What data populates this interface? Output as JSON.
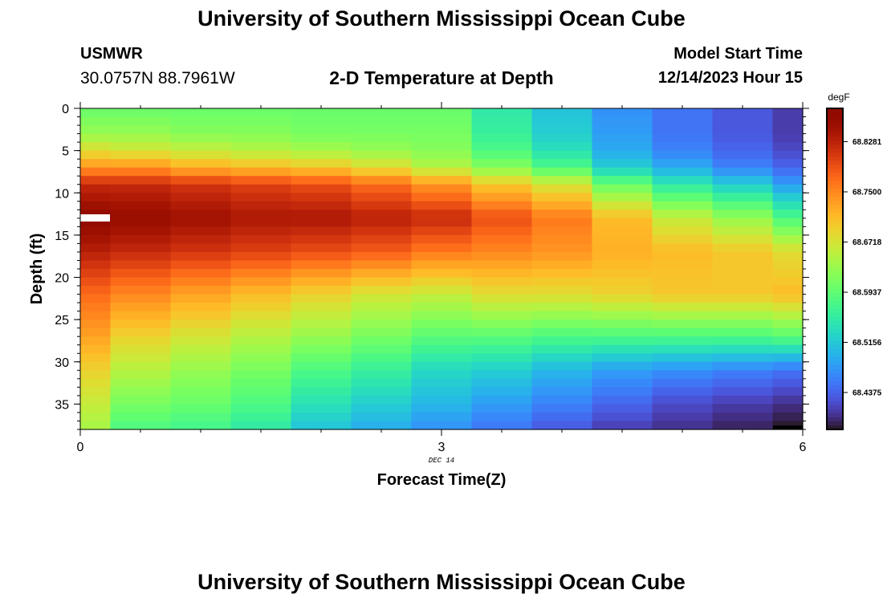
{
  "header": {
    "title": "University of Southern Mississippi Ocean Cube",
    "station": "USMWR",
    "coordinates": "30.0757N  88.7961W",
    "subtitle": "2-D Temperature at Depth",
    "model_start_label": "Model Start Time",
    "model_start_value": "12/14/2023 Hour 15"
  },
  "footer": {
    "title": "University of Southern Mississippi Ocean Cube"
  },
  "chart_data": {
    "type": "heatmap",
    "xlabel": "Forecast Time(Z)",
    "ylabel": "Depth (ft)",
    "x_ticks": [
      "0",
      "3",
      "6"
    ],
    "x_tick_values": [
      0,
      3,
      6
    ],
    "x_sublabel": "DEC 14",
    "y_ticks": [
      "0",
      "5",
      "10",
      "15",
      "20",
      "25",
      "30",
      "35"
    ],
    "y_tick_values": [
      0,
      5,
      10,
      15,
      20,
      25,
      30,
      35
    ],
    "xlim": [
      0,
      6
    ],
    "ylim": [
      0,
      38
    ],
    "y_inverted": true,
    "colorbar": {
      "unit": "degF",
      "labels": [
        "68.8281",
        "68.7500",
        "68.6718",
        "68.5937",
        "68.5156",
        "68.4375"
      ],
      "label_values": [
        68.8281,
        68.75,
        68.6718,
        68.5937,
        68.5156,
        68.4375
      ],
      "min": 68.38,
      "max": 68.88,
      "colormap": "turbo"
    },
    "x_edges": [
      0,
      0.25,
      0.75,
      1.25,
      1.75,
      2.25,
      2.75,
      3.25,
      3.75,
      4.25,
      4.75,
      5.25,
      5.75,
      6.0
    ],
    "depth_profiles": [
      {
        "time": 0.0,
        "profile": [
          [
            0,
            68.6
          ],
          [
            3,
            68.63
          ],
          [
            5,
            68.68
          ],
          [
            7,
            68.74
          ],
          [
            9,
            68.82
          ],
          [
            13,
            68.87
          ],
          [
            17,
            68.83
          ],
          [
            22,
            68.77
          ],
          [
            27,
            68.73
          ],
          [
            31,
            68.69
          ],
          [
            35,
            68.66
          ],
          [
            38,
            68.64
          ]
        ]
      },
      {
        "time": 0.5,
        "profile": [
          [
            0,
            68.6
          ],
          [
            3,
            68.63
          ],
          [
            5,
            68.67
          ],
          [
            7,
            68.74
          ],
          [
            9,
            68.82
          ],
          [
            13,
            68.86
          ],
          [
            17,
            68.82
          ],
          [
            22,
            68.75
          ],
          [
            27,
            68.69
          ],
          [
            31,
            68.65
          ],
          [
            35,
            68.61
          ],
          [
            38,
            68.58
          ]
        ]
      },
      {
        "time": 1.0,
        "profile": [
          [
            0,
            68.6
          ],
          [
            3,
            68.62
          ],
          [
            5,
            68.66
          ],
          [
            7,
            68.72
          ],
          [
            9,
            68.81
          ],
          [
            13,
            68.85
          ],
          [
            17,
            68.81
          ],
          [
            22,
            68.73
          ],
          [
            27,
            68.67
          ],
          [
            31,
            68.63
          ],
          [
            35,
            68.6
          ],
          [
            38,
            68.57
          ]
        ]
      },
      {
        "time": 1.5,
        "profile": [
          [
            0,
            68.6
          ],
          [
            3,
            68.62
          ],
          [
            5,
            68.65
          ],
          [
            7,
            68.71
          ],
          [
            9,
            68.8
          ],
          [
            13,
            68.84
          ],
          [
            17,
            68.8
          ],
          [
            22,
            68.71
          ],
          [
            27,
            68.65
          ],
          [
            31,
            68.61
          ],
          [
            35,
            68.58
          ],
          [
            38,
            68.55
          ]
        ]
      },
      {
        "time": 2.0,
        "profile": [
          [
            0,
            68.6
          ],
          [
            3,
            68.61
          ],
          [
            5,
            68.64
          ],
          [
            7,
            68.7
          ],
          [
            9,
            68.79
          ],
          [
            13,
            68.84
          ],
          [
            17,
            68.79
          ],
          [
            22,
            68.69
          ],
          [
            27,
            68.63
          ],
          [
            31,
            68.58
          ],
          [
            35,
            68.54
          ],
          [
            38,
            68.51
          ]
        ]
      },
      {
        "time": 2.5,
        "profile": [
          [
            0,
            68.6
          ],
          [
            3,
            68.61
          ],
          [
            5,
            68.63
          ],
          [
            7,
            68.68
          ],
          [
            9,
            68.77
          ],
          [
            13,
            68.83
          ],
          [
            17,
            68.78
          ],
          [
            22,
            68.67
          ],
          [
            27,
            68.61
          ],
          [
            31,
            68.56
          ],
          [
            35,
            68.52
          ],
          [
            38,
            68.49
          ]
        ]
      },
      {
        "time": 3.0,
        "profile": [
          [
            0,
            68.6
          ],
          [
            3,
            68.61
          ],
          [
            5,
            68.62
          ],
          [
            7,
            68.65
          ],
          [
            9,
            68.74
          ],
          [
            13,
            68.82
          ],
          [
            17,
            68.76
          ],
          [
            22,
            68.66
          ],
          [
            27,
            68.59
          ],
          [
            31,
            68.53
          ],
          [
            35,
            68.5
          ],
          [
            38,
            68.47
          ]
        ]
      },
      {
        "time": 3.5,
        "profile": [
          [
            0,
            68.55
          ],
          [
            3,
            68.56
          ],
          [
            5,
            68.58
          ],
          [
            7,
            68.62
          ],
          [
            9,
            68.7
          ],
          [
            13,
            68.79
          ],
          [
            17,
            68.75
          ],
          [
            22,
            68.68
          ],
          [
            27,
            68.59
          ],
          [
            31,
            68.52
          ],
          [
            35,
            68.48
          ],
          [
            38,
            68.45
          ]
        ]
      },
      {
        "time": 4.0,
        "profile": [
          [
            0,
            68.51
          ],
          [
            3,
            68.52
          ],
          [
            5,
            68.54
          ],
          [
            7,
            68.58
          ],
          [
            9,
            68.67
          ],
          [
            13,
            68.76
          ],
          [
            17,
            68.74
          ],
          [
            22,
            68.68
          ],
          [
            27,
            68.58
          ],
          [
            31,
            68.5
          ],
          [
            35,
            68.46
          ],
          [
            38,
            68.43
          ]
        ]
      },
      {
        "time": 4.5,
        "profile": [
          [
            0,
            68.47
          ],
          [
            3,
            68.48
          ],
          [
            5,
            68.49
          ],
          [
            7,
            68.52
          ],
          [
            9,
            68.6
          ],
          [
            13,
            68.71
          ],
          [
            17,
            68.72
          ],
          [
            22,
            68.69
          ],
          [
            27,
            68.58
          ],
          [
            31,
            68.48
          ],
          [
            35,
            68.44
          ],
          [
            38,
            68.41
          ]
        ]
      },
      {
        "time": 5.0,
        "profile": [
          [
            0,
            68.45
          ],
          [
            3,
            68.45
          ],
          [
            5,
            68.46
          ],
          [
            7,
            68.49
          ],
          [
            9,
            68.55
          ],
          [
            13,
            68.66
          ],
          [
            17,
            68.71
          ],
          [
            22,
            68.7
          ],
          [
            27,
            68.58
          ],
          [
            31,
            68.47
          ],
          [
            35,
            68.42
          ],
          [
            38,
            68.4
          ]
        ]
      },
      {
        "time": 5.5,
        "profile": [
          [
            0,
            68.43
          ],
          [
            3,
            68.43
          ],
          [
            5,
            68.44
          ],
          [
            7,
            68.46
          ],
          [
            9,
            68.52
          ],
          [
            13,
            68.63
          ],
          [
            17,
            68.7
          ],
          [
            22,
            68.7
          ],
          [
            27,
            68.58
          ],
          [
            31,
            68.46
          ],
          [
            35,
            68.41
          ],
          [
            38,
            68.39
          ]
        ]
      },
      {
        "time": 5.875,
        "profile": [
          [
            0,
            68.41
          ],
          [
            3,
            68.41
          ],
          [
            5,
            68.42
          ],
          [
            7,
            68.44
          ],
          [
            9,
            68.48
          ],
          [
            13,
            68.58
          ],
          [
            17,
            68.68
          ],
          [
            22,
            68.71
          ],
          [
            27,
            68.59
          ],
          [
            31,
            68.45
          ],
          [
            35,
            68.4
          ],
          [
            38,
            68.38
          ]
        ]
      }
    ]
  }
}
